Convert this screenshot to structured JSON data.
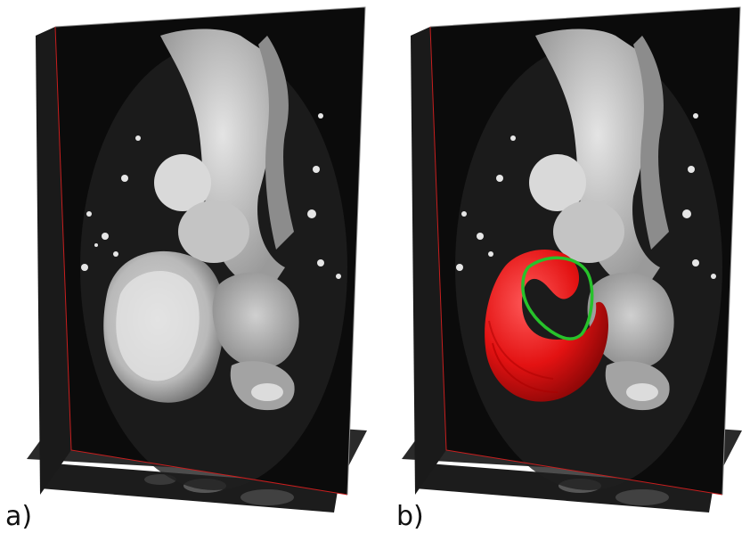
{
  "figure": {
    "panels": [
      {
        "label": "a)",
        "has_segmentation": false
      },
      {
        "label": "b)",
        "has_segmentation": true
      }
    ],
    "colors": {
      "background": "#ffffff",
      "slice_dark": "#0b0b0b",
      "tissue_light": "#d8d8d8",
      "plane_edge": "#c81e1e",
      "segmentation_fill": "#e31212",
      "segmentation_contour": "#27c22b"
    }
  }
}
